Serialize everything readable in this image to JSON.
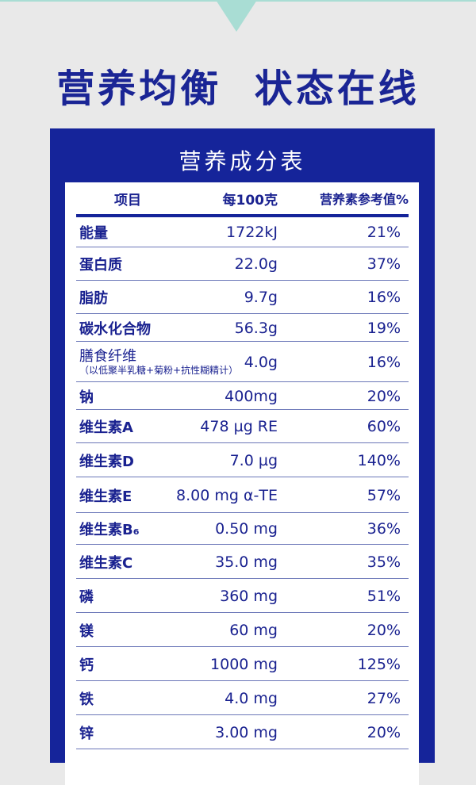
{
  "colors": {
    "brand_blue": "#15249a",
    "teal": "#a9ddd4",
    "background": "#e9e9e9"
  },
  "headline": "营养均衡  状态在线",
  "table_title": "营养成分表",
  "columns": [
    "项目",
    "每100克",
    "营养素参考值%"
  ],
  "rows": [
    {
      "name": "能量",
      "amount": "1722kJ",
      "nrv": "21%"
    },
    {
      "name": "蛋白质",
      "amount": "22.0g",
      "nrv": "37%"
    },
    {
      "name": "脂肪",
      "amount": "9.7g",
      "nrv": "16%"
    },
    {
      "name": "碳水化合物",
      "amount": "56.3g",
      "nrv": "19%"
    },
    {
      "name": "膳食纤维",
      "note": "（以低聚半乳糖+菊粉+抗性糊精计）",
      "amount": "4.0g",
      "nrv": "16%"
    },
    {
      "name": "钠",
      "amount": "400mg",
      "nrv": "20%"
    },
    {
      "name": "维生素A",
      "amount": "478 µg RE",
      "nrv": "60%"
    },
    {
      "name": "维生素D",
      "amount": "7.0 µg",
      "nrv": "140%"
    },
    {
      "name": "维生素E",
      "amount": "8.00 mg  α-TE",
      "nrv": "57%"
    },
    {
      "name": "维生素B₆",
      "amount": "0.50 mg",
      "nrv": "36%"
    },
    {
      "name": "维生素C",
      "amount": "35.0 mg",
      "nrv": "35%"
    },
    {
      "name": "磷",
      "amount": "360 mg",
      "nrv": "51%"
    },
    {
      "name": "镁",
      "amount": "60 mg",
      "nrv": "20%"
    },
    {
      "name": "钙",
      "amount": "1000 mg",
      "nrv": "125%"
    },
    {
      "name": "铁",
      "amount": "4.0 mg",
      "nrv": "27%"
    },
    {
      "name": "锌",
      "amount": "3.00 mg",
      "nrv": "20%"
    }
  ]
}
